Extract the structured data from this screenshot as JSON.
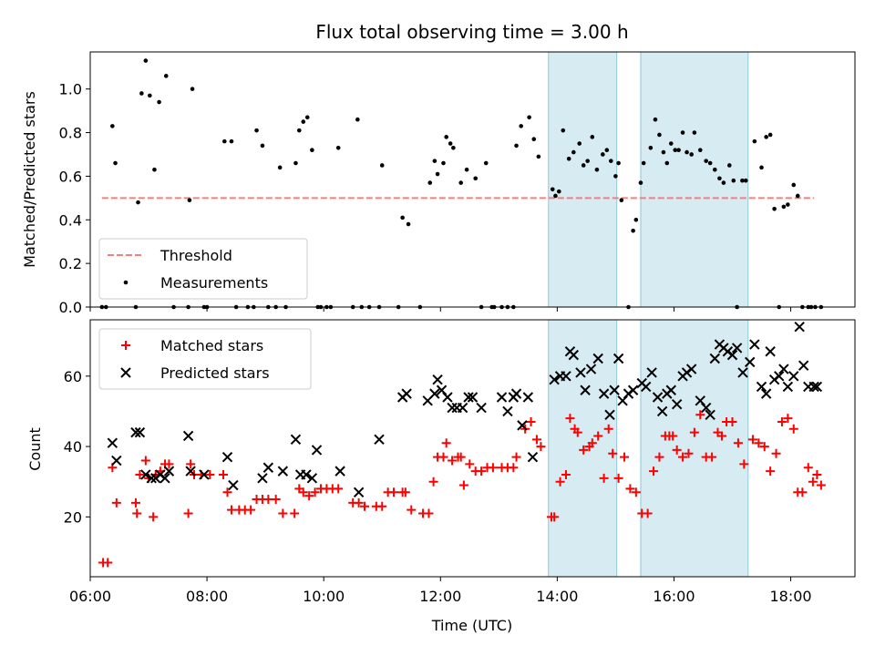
{
  "chart_data": [
    {
      "type": "scatter",
      "title": "Flux total observing time = 3.00 h",
      "xlabel": "",
      "ylabel": "Matched/Predicted stars",
      "xlim": [
        6.0,
        19.1
      ],
      "ylim": [
        0,
        1.17
      ],
      "yticks": [
        0.0,
        0.2,
        0.4,
        0.6,
        0.8,
        1.0
      ],
      "ytick_labels": [
        "0.0",
        "0.2",
        "0.4",
        "0.6",
        "0.8",
        "1.0"
      ],
      "shaded_intervals": [
        [
          13.85,
          15.02
        ],
        [
          15.43,
          17.27
        ]
      ],
      "threshold": {
        "name": "Threshold",
        "y": 0.5,
        "x": [
          6.2,
          18.4
        ],
        "color": "#f08080"
      },
      "legend": {
        "placement": "lower-left",
        "entries": [
          "Threshold",
          "Measurements"
        ]
      },
      "series": [
        {
          "name": "Measurements",
          "color": "#000000",
          "x": [
            6.2,
            6.27,
            6.38,
            6.43,
            6.78,
            6.82,
            6.88,
            6.95,
            7.02,
            7.1,
            7.18,
            7.3,
            7.43,
            7.68,
            7.7,
            7.75,
            7.95,
            8.0,
            8.3,
            8.42,
            8.5,
            8.7,
            8.8,
            8.85,
            8.95,
            9.05,
            9.18,
            9.25,
            9.35,
            9.52,
            9.58,
            9.65,
            9.72,
            9.8,
            9.9,
            9.95,
            10.05,
            10.12,
            10.25,
            10.5,
            10.58,
            10.65,
            10.78,
            10.95,
            11.0,
            11.28,
            11.35,
            11.45,
            11.65,
            11.82,
            11.9,
            11.95,
            12.05,
            12.1,
            12.17,
            12.22,
            12.35,
            12.45,
            12.6,
            12.7,
            12.78,
            12.88,
            12.92,
            13.05,
            13.15,
            13.25,
            13.3,
            13.38,
            13.52,
            13.6,
            13.68,
            13.92,
            13.97,
            14.03,
            14.1,
            14.2,
            14.28,
            14.38,
            14.45,
            14.52,
            14.6,
            14.68,
            14.78,
            14.85,
            14.92,
            15.0,
            15.05,
            15.1,
            15.22,
            15.3,
            15.35,
            15.43,
            15.48,
            15.6,
            15.68,
            15.75,
            15.82,
            15.88,
            15.95,
            16.02,
            16.08,
            16.15,
            16.22,
            16.3,
            16.35,
            16.45,
            16.55,
            16.62,
            16.7,
            16.78,
            16.85,
            16.95,
            17.02,
            17.08,
            17.17,
            17.23,
            17.38,
            17.5,
            17.58,
            17.65,
            17.72,
            17.8,
            17.88,
            17.95,
            18.05,
            18.12,
            18.2,
            18.3,
            18.35,
            18.42,
            18.52
          ],
          "values": [
            0.0,
            0.0,
            0.83,
            0.66,
            0.0,
            0.48,
            0.98,
            1.13,
            0.97,
            0.63,
            0.94,
            1.06,
            0.0,
            0.0,
            0.49,
            1.0,
            0.0,
            0.0,
            0.76,
            0.76,
            0.0,
            0.0,
            0.0,
            0.81,
            0.74,
            0.0,
            0.0,
            0.64,
            0.0,
            0.66,
            0.81,
            0.85,
            0.87,
            0.72,
            0.0,
            0.0,
            0.0,
            0.0,
            0.73,
            0.0,
            0.86,
            0.0,
            0.0,
            0.0,
            0.65,
            0.0,
            0.41,
            0.38,
            0.0,
            0.57,
            0.67,
            0.61,
            0.66,
            0.78,
            0.75,
            0.73,
            0.57,
            0.63,
            0.59,
            0.0,
            0.66,
            0.0,
            0.0,
            0.0,
            0.0,
            0.0,
            0.74,
            0.83,
            0.87,
            0.77,
            0.69,
            0.54,
            0.51,
            0.53,
            0.81,
            0.68,
            0.71,
            0.75,
            0.65,
            0.67,
            0.78,
            0.63,
            0.7,
            0.72,
            0.67,
            0.6,
            0.66,
            0.49,
            0.0,
            0.35,
            0.4,
            0.57,
            0.66,
            0.73,
            0.86,
            0.79,
            0.71,
            0.66,
            0.75,
            0.72,
            0.72,
            0.8,
            0.71,
            0.7,
            0.8,
            0.72,
            0.67,
            0.66,
            0.63,
            0.59,
            0.57,
            0.65,
            0.58,
            0.0,
            0.58,
            0.58,
            0.76,
            0.64,
            0.78,
            0.79,
            0.45,
            0.0,
            0.46,
            0.47,
            0.56,
            0.51,
            0.0,
            0.0,
            0.0,
            0.0,
            0.0
          ]
        }
      ]
    },
    {
      "type": "scatter",
      "title": "",
      "xlabel": "Time (UTC)",
      "ylabel": "Count",
      "xlim": [
        6.0,
        19.1
      ],
      "ylim": [
        3,
        76
      ],
      "yticks": [
        20,
        40,
        60
      ],
      "ytick_labels": [
        "20",
        "40",
        "60"
      ],
      "xticks": [
        6,
        8,
        10,
        12,
        14,
        16,
        18
      ],
      "xtick_labels": [
        "06:00",
        "08:00",
        "10:00",
        "12:00",
        "14:00",
        "16:00",
        "18:00"
      ],
      "shaded_intervals": [
        [
          13.85,
          15.02
        ],
        [
          15.43,
          17.27
        ]
      ],
      "legend": {
        "placement": "upper-left",
        "entries": [
          "Matched stars",
          "Predicted stars"
        ]
      },
      "series": [
        {
          "name": "Matched stars",
          "marker": "+",
          "color": "#ff0000",
          "x": [
            6.22,
            6.3,
            6.38,
            6.45,
            6.78,
            6.8,
            6.85,
            6.95,
            7.0,
            7.08,
            7.12,
            7.2,
            7.28,
            7.35,
            7.68,
            7.72,
            7.78,
            7.9,
            8.05,
            8.28,
            8.35,
            8.42,
            8.55,
            8.65,
            8.75,
            8.85,
            8.95,
            9.05,
            9.18,
            9.3,
            9.5,
            9.58,
            9.65,
            9.75,
            9.85,
            9.95,
            10.05,
            10.15,
            10.25,
            10.5,
            10.6,
            10.7,
            10.9,
            11.0,
            11.1,
            11.2,
            11.35,
            11.4,
            11.5,
            11.7,
            11.8,
            11.88,
            11.95,
            12.05,
            12.1,
            12.2,
            12.3,
            12.35,
            12.4,
            12.5,
            12.6,
            12.7,
            12.8,
            12.9,
            13.05,
            13.15,
            13.25,
            13.3,
            13.45,
            13.55,
            13.65,
            13.72,
            13.9,
            13.95,
            14.05,
            14.15,
            14.22,
            14.3,
            14.35,
            14.45,
            14.55,
            14.6,
            14.7,
            14.8,
            14.88,
            14.95,
            15.05,
            15.15,
            15.25,
            15.35,
            15.45,
            15.55,
            15.65,
            15.75,
            15.85,
            15.92,
            15.98,
            16.05,
            16.15,
            16.25,
            16.35,
            16.45,
            16.55,
            16.65,
            16.75,
            16.82,
            16.9,
            17.0,
            17.1,
            17.2,
            17.35,
            17.45,
            17.55,
            17.65,
            17.75,
            17.85,
            17.95,
            18.05,
            18.12,
            18.2,
            18.3,
            18.38,
            18.45,
            18.52
          ],
          "values": [
            7,
            7,
            34,
            24,
            24,
            21,
            32,
            36,
            31,
            20,
            32,
            33,
            35,
            35,
            21,
            35,
            32,
            32,
            32,
            32,
            27,
            22,
            22,
            22,
            22,
            25,
            25,
            25,
            25,
            21,
            21,
            28,
            27,
            26,
            27,
            28,
            28,
            28,
            28,
            24,
            24,
            23,
            23,
            23,
            27,
            27,
            27,
            27,
            22,
            21,
            21,
            30,
            37,
            37,
            41,
            36,
            37,
            37,
            29,
            35,
            33,
            33,
            34,
            34,
            34,
            34,
            34,
            37,
            45,
            47,
            42,
            40,
            20,
            20,
            30,
            32,
            48,
            45,
            44,
            39,
            40,
            41,
            43,
            31,
            45,
            38,
            31,
            37,
            28,
            27,
            21,
            21,
            33,
            37,
            43,
            43,
            43,
            39,
            37,
            38,
            44,
            49,
            37,
            37,
            44,
            43,
            47,
            47,
            41,
            35,
            42,
            41,
            40,
            33,
            38,
            47,
            48,
            45,
            27,
            27,
            34,
            30,
            32,
            29
          ]
        },
        {
          "name": "Predicted stars",
          "marker": "x",
          "color": "#000000",
          "x": [
            6.38,
            6.45,
            6.78,
            6.85,
            6.95,
            7.05,
            7.12,
            7.2,
            7.28,
            7.35,
            7.68,
            7.72,
            7.95,
            8.35,
            8.45,
            8.95,
            9.05,
            9.3,
            9.52,
            9.6,
            9.7,
            9.8,
            9.88,
            10.28,
            10.6,
            10.95,
            11.35,
            11.42,
            11.78,
            11.9,
            11.95,
            12.02,
            12.12,
            12.2,
            12.28,
            12.38,
            12.48,
            12.55,
            12.7,
            13.05,
            13.15,
            13.25,
            13.3,
            13.4,
            13.5,
            13.58,
            13.95,
            14.05,
            14.15,
            14.22,
            14.28,
            14.4,
            14.48,
            14.58,
            14.7,
            14.8,
            14.9,
            14.98,
            15.05,
            15.12,
            15.22,
            15.3,
            15.45,
            15.52,
            15.62,
            15.72,
            15.8,
            15.88,
            15.95,
            16.05,
            16.15,
            16.22,
            16.3,
            16.45,
            16.55,
            16.62,
            16.7,
            16.78,
            16.85,
            16.92,
            17.0,
            17.08,
            17.18,
            17.3,
            17.38,
            17.5,
            17.58,
            17.65,
            17.72,
            17.8,
            17.88,
            17.95,
            18.05,
            18.15,
            18.22,
            18.3,
            18.4,
            18.45
          ],
          "values": [
            41,
            36,
            44,
            44,
            32,
            31,
            31,
            32,
            31,
            33,
            43,
            33,
            32,
            37,
            29,
            31,
            34,
            33,
            42,
            32,
            32,
            31,
            39,
            33,
            27,
            42,
            54,
            55,
            53,
            55,
            59,
            56,
            54,
            51,
            51,
            51,
            54,
            54,
            51,
            54,
            50,
            54,
            55,
            46,
            54,
            37,
            59,
            60,
            60,
            67,
            66,
            61,
            56,
            62,
            65,
            55,
            49,
            56,
            65,
            53,
            55,
            56,
            58,
            57,
            61,
            54,
            50,
            55,
            56,
            52,
            60,
            61,
            62,
            53,
            51,
            49,
            65,
            69,
            68,
            67,
            66,
            68,
            61,
            64,
            69,
            57,
            55,
            67,
            59,
            60,
            62,
            57,
            60,
            74,
            63,
            57,
            57,
            57
          ]
        }
      ]
    }
  ]
}
